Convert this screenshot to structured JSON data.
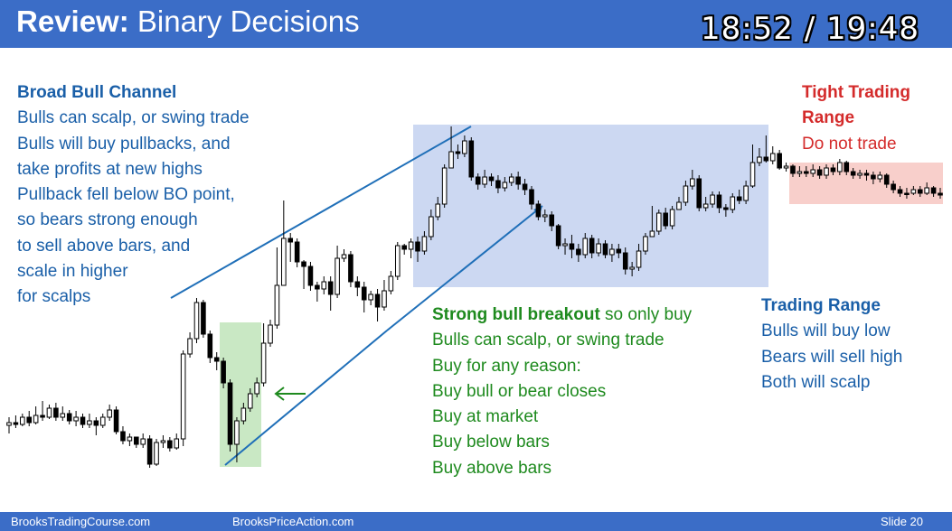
{
  "header": {
    "title_bold": "Review:",
    "title_rest": " Binary Decisions",
    "timer": "18:52 / 19:48"
  },
  "footer": {
    "left": "BrooksTradingCourse.com",
    "center": "BrooksPriceAction.com",
    "right": "Slide  20"
  },
  "annotations": {
    "broad_bull_channel": {
      "heading": "Broad Bull Channel",
      "lines": [
        "Bulls can scalp, or swing trade",
        "Bulls will buy pullbacks, and",
        "take profits at new highs",
        "Pullback fell below BO point,",
        "so bears strong enough",
        "to sell above bars, and",
        "scale in higher",
        "for scalps"
      ]
    },
    "tight_trading_range": {
      "heading_1": "Tight Trading",
      "heading_2": "Range",
      "line": "Do not trade"
    },
    "strong_bull_breakout": {
      "heading": "Strong bull breakout",
      "heading_suffix": " so only buy",
      "lines": [
        "Bulls can scalp, or swing trade",
        "Buy for any reason:",
        "Buy bull or bear closes",
        "Buy at market",
        "Buy below bars",
        "Buy above bars"
      ]
    },
    "trading_range": {
      "heading": "Trading Range",
      "lines": [
        "Bulls will buy low",
        "Bears will sell high",
        "Both will scalp"
      ]
    }
  },
  "colors": {
    "title_bar": "#3b6dc7",
    "blue_text": "#1a5fa8",
    "green_text": "#1e8a1e",
    "red_text": "#d42b2b",
    "breakout_zone": "#c9e8c4",
    "trading_range_zone": "#ccd8f2",
    "tight_range_zone": "#f8cfcb",
    "channel_line": "#1f6fb8",
    "arrow": "#1e8a1e"
  },
  "candles": [
    [
      471,
      468,
      480,
      462
    ],
    [
      468,
      470,
      474,
      460
    ],
    [
      470,
      462,
      472,
      458
    ],
    [
      462,
      468,
      472,
      455
    ],
    [
      468,
      460,
      470,
      450
    ],
    [
      460,
      462,
      466,
      444
    ],
    [
      462,
      452,
      464,
      448
    ],
    [
      452,
      462,
      466,
      446
    ],
    [
      462,
      458,
      466,
      450
    ],
    [
      458,
      466,
      470,
      454
    ],
    [
      466,
      462,
      472,
      455
    ],
    [
      462,
      470,
      474,
      458
    ],
    [
      470,
      466,
      474,
      458
    ],
    [
      466,
      471,
      482,
      462
    ],
    [
      471,
      462,
      474,
      458
    ],
    [
      462,
      454,
      466,
      448
    ],
    [
      454,
      478,
      481,
      450
    ],
    [
      478,
      488,
      492,
      472
    ],
    [
      488,
      484,
      494,
      480
    ],
    [
      484,
      492,
      496,
      484
    ],
    [
      492,
      486,
      496,
      480
    ],
    [
      486,
      514,
      518,
      482
    ],
    [
      514,
      490,
      516,
      486
    ],
    [
      490,
      488,
      496,
      482
    ],
    [
      488,
      496,
      500,
      484
    ],
    [
      496,
      486,
      498,
      480
    ],
    [
      486,
      392,
      494,
      388
    ],
    [
      392,
      375,
      396,
      368
    ],
    [
      375,
      335,
      380,
      330
    ],
    [
      335,
      370,
      374,
      332
    ],
    [
      370,
      396,
      402,
      366
    ],
    [
      396,
      400,
      410,
      390
    ],
    [
      400,
      424,
      430,
      396
    ],
    [
      424,
      492,
      500,
      420
    ],
    [
      492,
      466,
      512,
      462
    ],
    [
      466,
      452,
      470,
      446
    ],
    [
      452,
      436,
      456,
      430
    ],
    [
      436,
      424,
      440,
      418
    ],
    [
      424,
      380,
      428,
      358
    ],
    [
      380,
      360,
      384,
      354
    ],
    [
      360,
      316,
      364,
      274
    ],
    [
      316,
      264,
      268,
      222
    ],
    [
      264,
      268,
      290,
      258
    ],
    [
      268,
      290,
      296,
      264
    ],
    [
      290,
      295,
      320,
      288
    ],
    [
      295,
      316,
      322,
      290
    ],
    [
      316,
      320,
      334,
      312
    ],
    [
      320,
      312,
      326,
      306
    ],
    [
      312,
      326,
      344,
      306
    ],
    [
      326,
      286,
      330,
      272
    ],
    [
      286,
      282,
      290,
      276
    ],
    [
      282,
      312,
      318,
      278
    ],
    [
      312,
      318,
      328,
      306
    ],
    [
      318,
      332,
      346,
      312
    ],
    [
      332,
      326,
      338,
      322
    ],
    [
      326,
      340,
      356,
      320
    ],
    [
      340,
      322,
      344,
      310
    ],
    [
      322,
      306,
      326,
      300
    ],
    [
      306,
      272,
      310,
      268
    ],
    [
      272,
      276,
      282,
      270
    ],
    [
      276,
      268,
      286,
      264
    ],
    [
      268,
      278,
      290,
      262
    ],
    [
      278,
      262,
      282,
      256
    ],
    [
      262,
      240,
      266,
      232
    ],
    [
      240,
      226,
      244,
      218
    ],
    [
      226,
      186,
      230,
      182
    ],
    [
      186,
      168,
      172,
      140
    ],
    [
      168,
      170,
      176,
      160
    ],
    [
      170,
      156,
      174,
      150
    ],
    [
      156,
      196,
      200,
      152
    ],
    [
      196,
      204,
      210,
      192
    ],
    [
      204,
      196,
      208,
      188
    ],
    [
      196,
      200,
      206,
      192
    ],
    [
      200,
      208,
      214,
      194
    ],
    [
      208,
      202,
      212,
      196
    ],
    [
      202,
      196,
      206,
      192
    ],
    [
      196,
      204,
      210,
      190
    ],
    [
      204,
      210,
      216,
      198
    ],
    [
      210,
      226,
      232,
      206
    ],
    [
      226,
      240,
      244,
      222
    ],
    [
      240,
      238,
      246,
      232
    ],
    [
      238,
      250,
      256,
      234
    ],
    [
      250,
      272,
      276,
      248
    ],
    [
      272,
      270,
      282,
      264
    ],
    [
      270,
      276,
      286,
      260
    ],
    [
      276,
      282,
      290,
      270
    ],
    [
      282,
      264,
      286,
      258
    ],
    [
      264,
      280,
      286,
      260
    ],
    [
      280,
      270,
      284,
      264
    ],
    [
      270,
      282,
      286,
      266
    ],
    [
      282,
      276,
      290,
      270
    ],
    [
      276,
      280,
      286,
      270
    ],
    [
      280,
      298,
      304,
      274
    ],
    [
      298,
      296,
      306,
      290
    ],
    [
      296,
      278,
      300,
      270
    ],
    [
      278,
      262,
      282,
      258
    ],
    [
      262,
      256,
      260,
      228
    ],
    [
      256,
      236,
      260,
      232
    ],
    [
      236,
      250,
      254,
      230
    ],
    [
      250,
      232,
      254,
      228
    ],
    [
      232,
      224,
      228,
      218
    ],
    [
      224,
      206,
      228,
      200
    ],
    [
      206,
      198,
      210,
      188
    ],
    [
      198,
      230,
      234,
      194
    ],
    [
      230,
      226,
      234,
      218
    ],
    [
      226,
      216,
      230,
      212
    ],
    [
      216,
      230,
      236,
      212
    ],
    [
      230,
      232,
      240,
      226
    ],
    [
      232,
      218,
      236,
      214
    ],
    [
      218,
      222,
      226,
      210
    ],
    [
      222,
      206,
      226,
      200
    ],
    [
      206,
      180,
      208,
      160
    ],
    [
      180,
      174,
      184,
      164
    ],
    [
      174,
      178,
      180,
      150
    ],
    [
      178,
      170,
      182,
      162
    ],
    [
      170,
      186,
      188,
      166
    ],
    [
      186,
      184,
      190,
      180
    ],
    [
      184,
      192,
      196,
      182
    ],
    [
      192,
      190,
      196,
      184
    ],
    [
      190,
      192,
      196,
      184
    ],
    [
      192,
      188,
      196,
      182
    ],
    [
      188,
      194,
      198,
      184
    ],
    [
      194,
      186,
      198,
      182
    ],
    [
      186,
      190,
      194,
      182
    ],
    [
      190,
      180,
      194,
      176
    ],
    [
      180,
      190,
      194,
      178
    ],
    [
      190,
      194,
      198,
      186
    ],
    [
      194,
      192,
      198,
      188
    ],
    [
      192,
      194,
      200,
      188
    ],
    [
      194,
      198,
      204,
      190
    ],
    [
      198,
      194,
      202,
      190
    ],
    [
      194,
      204,
      208,
      192
    ],
    [
      204,
      210,
      214,
      200
    ],
    [
      210,
      214,
      218,
      206
    ],
    [
      214,
      214,
      220,
      208
    ],
    [
      214,
      210,
      216,
      206
    ],
    [
      210,
      214,
      218,
      206
    ],
    [
      214,
      208,
      216,
      202
    ],
    [
      208,
      214,
      218,
      206
    ],
    [
      214,
      216,
      220,
      208
    ]
  ]
}
